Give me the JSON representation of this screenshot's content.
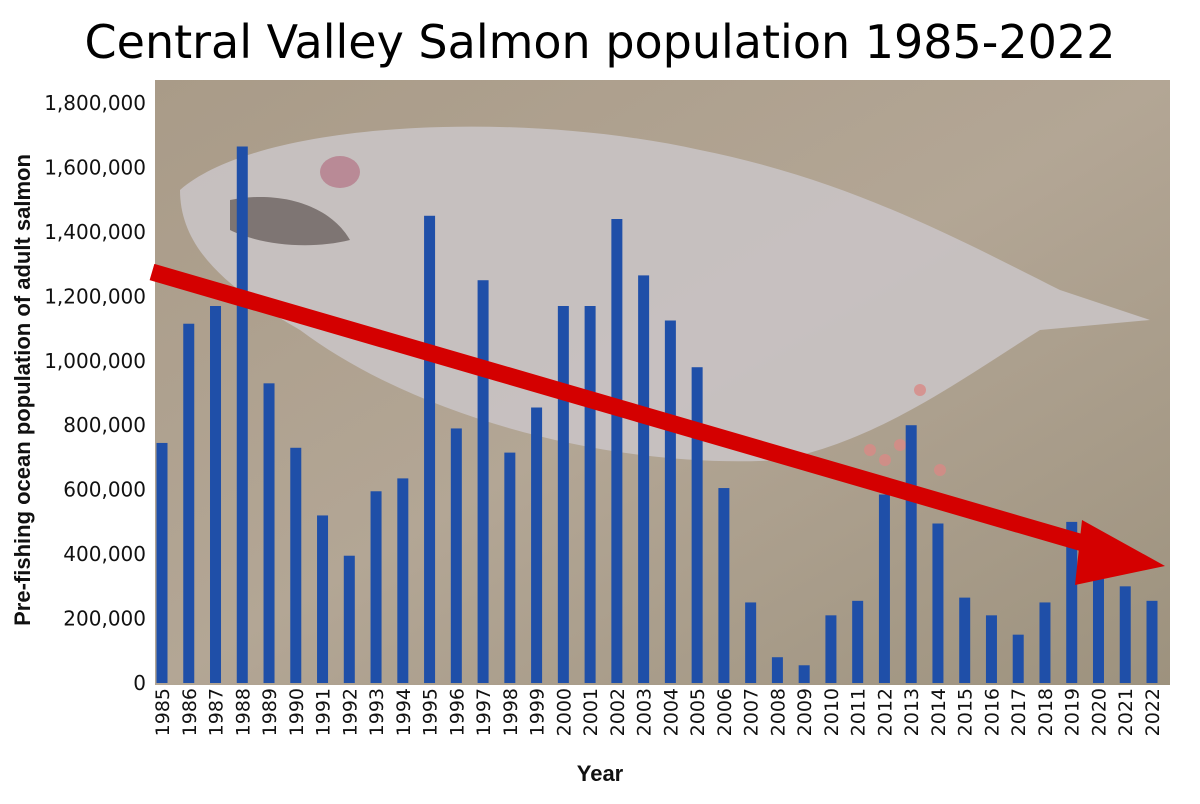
{
  "chart_data": {
    "type": "bar",
    "title": "Central Valley Salmon population 1985-2022",
    "xlabel": "Year",
    "ylabel": "Pre-fishing ocean population of adult salmon",
    "ylim": [
      0,
      1800000
    ],
    "yticks": [
      "0",
      "200,000",
      "400,000",
      "600,000",
      "800,000",
      "1,000,000",
      "1,200,000",
      "1,400,000",
      "1,600,000",
      "1,800,000"
    ],
    "grid": false,
    "legend": "none",
    "categories": [
      "1985",
      "1986",
      "1987",
      "1988",
      "1989",
      "1990",
      "1991",
      "1992",
      "1993",
      "1994",
      "1995",
      "1996",
      "1997",
      "1998",
      "1999",
      "2000",
      "2001",
      "2002",
      "2003",
      "2004",
      "2005",
      "2006",
      "2007",
      "2008",
      "2009",
      "2010",
      "2011",
      "2012",
      "2013",
      "2014",
      "2015",
      "2016",
      "2017",
      "2018",
      "2019",
      "2020",
      "2021",
      "2022"
    ],
    "values": [
      745000,
      1115000,
      1170000,
      1665000,
      930000,
      730000,
      520000,
      395000,
      595000,
      635000,
      1450000,
      790000,
      1250000,
      715000,
      855000,
      1170000,
      1170000,
      1440000,
      1265000,
      1125000,
      980000,
      605000,
      250000,
      80000,
      55000,
      210000,
      255000,
      585000,
      800000,
      495000,
      265000,
      210000,
      150000,
      250000,
      500000,
      335000,
      300000,
      255000
    ],
    "bar_color": "#1f4fa8",
    "trend_arrow": {
      "direction": "decreasing",
      "color": "#d40000"
    },
    "background": "photo of dead salmon on ground"
  }
}
